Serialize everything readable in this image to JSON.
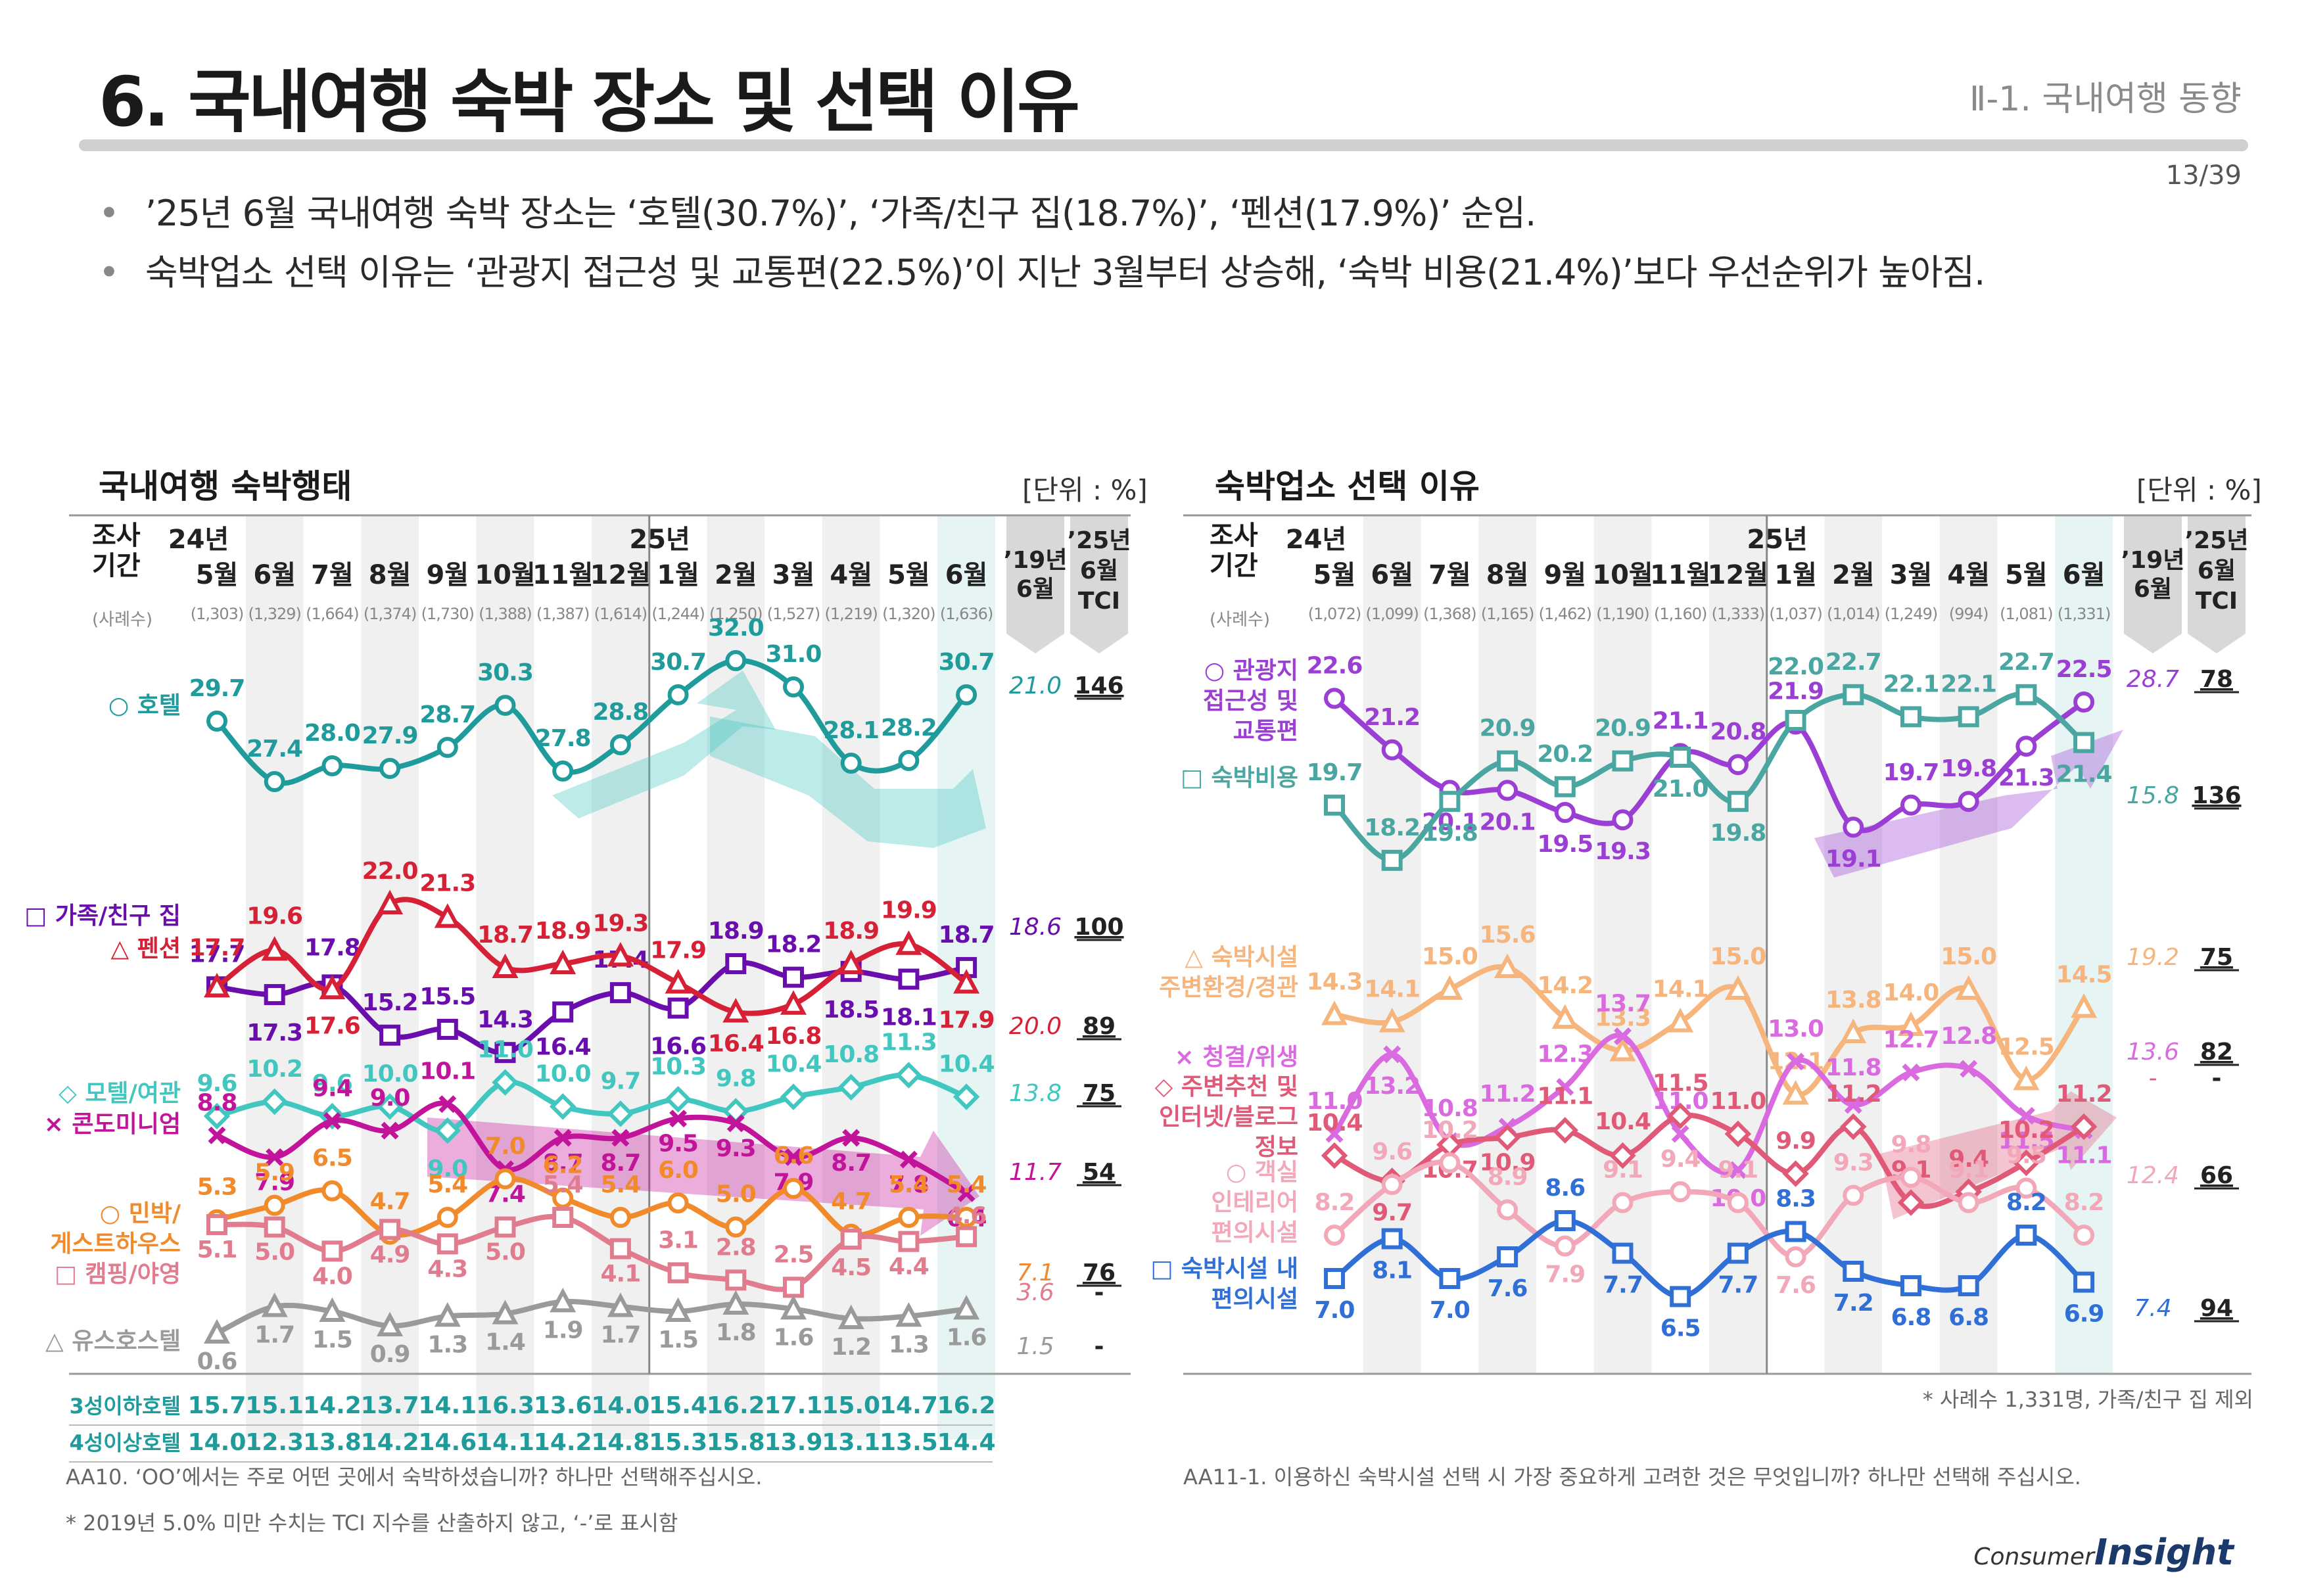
{
  "header": {
    "title": "6. 국내여행 숙박 장소 및 선택 이유",
    "section": "Ⅱ-1. 국내여행 동향",
    "page": "13/39"
  },
  "bullets": [
    "’25년 6월 국내여행 숙박 장소는 ‘호텔(30.7%)’, ‘가족/친구 집(18.7%)’, ‘펜션(17.9%)’ 순임.",
    "숙박업소 선택 이유는 ‘관광지 접근성 및 교통편(22.5%)’이 지난 3월부터 상승해, ‘숙박 비용(21.4%)’보다 우선순위가 높아짐."
  ],
  "colors": {
    "teal": "#1f9b9b",
    "purple": "#6a0dad",
    "red": "#d62035",
    "cyan": "#41c7c0",
    "magenta": "#c2149a",
    "orange": "#f08a2b",
    "pink": "#e07c8e",
    "gray": "#9a9a9a",
    "violet": "#9b3fd4",
    "peach": "#f5b57c",
    "orchid": "#d96ae0",
    "rose": "#e05a78",
    "lightpink": "#f2a8b8",
    "blue": "#2f6fd6"
  },
  "left_panel": {
    "title": "국내여행 숙박행태",
    "unit": "[단위 : %]",
    "period_label": [
      "조사",
      "기간"
    ],
    "sample_label": "(사례수)",
    "year_marks": [
      "24년",
      "25년"
    ],
    "tci_headers": [
      "’19년 6월",
      "’25년 6월 TCI"
    ],
    "row_labels": [
      "3성이하호텔",
      "4성이상호텔"
    ],
    "footnote1": "AA10. ‘OO’에서는 주로 어떤 곳에서 숙박하셨습니까? 하나만 선택해주십시오.",
    "footnote2": "* 2019년 5.0% 미만 수치는 TCI 지수를 산출하지 않고, ‘-’로 표시함"
  },
  "right_panel": {
    "title": "숙박업소 선택 이유",
    "unit": "[단위 : %]",
    "period_label": [
      "조사",
      "기간"
    ],
    "sample_label": "(사례수)",
    "year_marks": [
      "24년",
      "25년"
    ],
    "tci_headers": [
      "’19년 6월",
      "’25년 6월 TCI"
    ],
    "note": "* 사례수 1,331명, 가족/친구 집 제외",
    "footnote": "AA11-1. 이용하신 숙박시설 선택 시 가장 중요하게 고려한 것은 무엇입니까? 하나만 선택해 주십시오."
  },
  "chart_data": [
    {
      "type": "line",
      "title": "국내여행 숙박행태",
      "categories": [
        "5월",
        "6월",
        "7월",
        "8월",
        "9월",
        "10월",
        "11월",
        "12월",
        "1월",
        "2월",
        "3월",
        "4월",
        "5월",
        "6월"
      ],
      "samples": [
        "(1,303)",
        "(1,329)",
        "(1,664)",
        "(1,374)",
        "(1,730)",
        "(1,388)",
        "(1,387)",
        "(1,614)",
        "(1,244)",
        "(1,250)",
        "(1,527)",
        "(1,219)",
        "(1,320)",
        "(1,636)"
      ],
      "series": [
        {
          "name": "호텔",
          "label": "○ 호텔",
          "color": "#1f9b9b",
          "marker": "circle",
          "values": [
            29.7,
            27.4,
            28.0,
            27.9,
            28.7,
            30.3,
            27.8,
            28.8,
            30.7,
            32.0,
            31.0,
            28.1,
            28.2,
            30.7
          ],
          "y2019": "21.0",
          "tci": "146"
        },
        {
          "name": "가족/친구 집",
          "label": "□ 가족/친구 집",
          "color": "#6a0dad",
          "marker": "square",
          "values": [
            17.7,
            17.3,
            17.8,
            15.2,
            15.5,
            14.3,
            16.4,
            17.4,
            16.6,
            18.9,
            18.2,
            18.5,
            18.1,
            18.7
          ],
          "y2019": "18.6",
          "tci": "100"
        },
        {
          "name": "펜션",
          "label": "△ 펜션",
          "color": "#d62035",
          "marker": "triangle",
          "values": [
            17.7,
            19.6,
            17.6,
            22.0,
            21.3,
            18.7,
            18.9,
            19.3,
            17.9,
            16.4,
            16.8,
            18.9,
            19.9,
            17.9
          ],
          "y2019": "20.0",
          "tci": "89"
        },
        {
          "name": "모텔/여관",
          "label": "◇ 모텔/여관",
          "color": "#41c7c0",
          "marker": "diamond",
          "values": [
            9.6,
            10.2,
            9.6,
            10.0,
            9.0,
            11.0,
            10.0,
            9.7,
            10.3,
            9.8,
            10.4,
            10.8,
            11.3,
            10.4
          ],
          "y2019": "13.8",
          "tci": "75"
        },
        {
          "name": "콘도미니엄",
          "label": "× 콘도미니엄",
          "color": "#c2149a",
          "marker": "cross",
          "values": [
            8.8,
            7.9,
            9.4,
            9.0,
            10.1,
            7.4,
            8.7,
            8.7,
            9.5,
            9.3,
            7.9,
            8.7,
            7.8,
            6.4
          ],
          "y2019": "11.7",
          "tci": "54"
        },
        {
          "name": "민박/게스트하우스",
          "label": "○ 민박/ 게스트하우스",
          "color": "#f08a2b",
          "marker": "circle",
          "values": [
            5.3,
            5.9,
            6.5,
            4.7,
            5.4,
            7.0,
            6.2,
            5.4,
            6.0,
            5.0,
            6.6,
            4.7,
            5.4,
            5.4
          ],
          "y2019": "7.1",
          "tci": "76"
        },
        {
          "name": "캠핑/야영",
          "label": "□ 캠핑/야영",
          "color": "#e07c8e",
          "marker": "square",
          "values": [
            5.1,
            5.0,
            4.0,
            4.9,
            4.3,
            5.0,
            5.4,
            4.1,
            3.1,
            2.8,
            2.5,
            4.5,
            4.4,
            4.6
          ],
          "y2019": "3.6",
          "tci": "-"
        },
        {
          "name": "유스호스텔",
          "label": "△ 유스호스텔",
          "color": "#9a9a9a",
          "marker": "triangle",
          "values": [
            0.6,
            1.7,
            1.5,
            0.9,
            1.3,
            1.4,
            1.9,
            1.7,
            1.5,
            1.8,
            1.6,
            1.2,
            1.3,
            1.6
          ],
          "y2019": "1.5",
          "tci": "-"
        }
      ],
      "extra_rows": [
        {
          "name": "3성이하호텔",
          "values": [
            15.7,
            15.1,
            14.2,
            13.7,
            14.1,
            16.3,
            13.6,
            14.0,
            15.4,
            16.2,
            17.1,
            15.0,
            14.7,
            16.2
          ]
        },
        {
          "name": "4성이상호텔",
          "values": [
            14.0,
            12.3,
            13.8,
            14.2,
            14.6,
            14.1,
            14.2,
            14.8,
            15.3,
            15.8,
            13.9,
            13.1,
            13.5,
            14.4
          ]
        }
      ]
    },
    {
      "type": "line",
      "title": "숙박업소 선택 이유",
      "categories": [
        "5월",
        "6월",
        "7월",
        "8월",
        "9월",
        "10월",
        "11월",
        "12월",
        "1월",
        "2월",
        "3월",
        "4월",
        "5월",
        "6월"
      ],
      "samples": [
        "(1,072)",
        "(1,099)",
        "(1,368)",
        "(1,165)",
        "(1,462)",
        "(1,190)",
        "(1,160)",
        "(1,333)",
        "(1,037)",
        "(1,014)",
        "(1,249)",
        "(994)",
        "(1,081)",
        "(1,331)"
      ],
      "series": [
        {
          "name": "관광지 접근성 및 교통편",
          "label": "○ 관광지 접근성 및 교통편",
          "color": "#9b3fd4",
          "marker": "circle",
          "values": [
            22.6,
            21.2,
            20.1,
            20.1,
            19.5,
            19.3,
            21.1,
            20.8,
            21.9,
            19.1,
            19.7,
            19.8,
            21.3,
            22.5
          ],
          "y2019": "28.7",
          "tci": "78"
        },
        {
          "name": "숙박비용",
          "label": "□ 숙박비용",
          "color": "#4aa6a0",
          "marker": "square",
          "values": [
            19.7,
            18.2,
            19.8,
            20.9,
            20.2,
            20.9,
            21.0,
            19.8,
            22.0,
            22.7,
            22.1,
            22.1,
            22.7,
            21.4
          ],
          "y2019": "15.8",
          "tci": "136"
        },
        {
          "name": "숙박시설 주변환경/경관",
          "label": "△ 숙박시설 주변환경/경관",
          "color": "#f5b57c",
          "marker": "triangle",
          "values": [
            14.3,
            14.1,
            15.0,
            15.6,
            14.2,
            13.3,
            14.1,
            15.0,
            12.1,
            13.8,
            14.0,
            15.0,
            12.5,
            14.5
          ],
          "y2019": "19.2",
          "tci": "75"
        },
        {
          "name": "청결/위생",
          "label": "× 청결/위생",
          "color": "#d96ae0",
          "marker": "cross",
          "values": [
            11.0,
            13.2,
            10.8,
            11.2,
            12.3,
            13.7,
            11.0,
            10.0,
            13.0,
            11.8,
            12.7,
            12.8,
            11.5,
            11.1
          ],
          "y2019": "13.6",
          "tci": "82"
        },
        {
          "name": "주변추천 및 인터넷/블로그 정보",
          "label": "◇ 주변추천 및 인터넷/블로그 정보",
          "color": "#e05a78",
          "marker": "diamond",
          "values": [
            10.4,
            9.7,
            10.7,
            10.9,
            11.1,
            10.4,
            11.5,
            11.0,
            9.9,
            11.2,
            9.1,
            9.4,
            10.2,
            11.2
          ],
          "y2019": "-",
          "tci": "-"
        },
        {
          "name": "객실 인테리어 편의시설",
          "label": "○ 객실 인테리어 편의시설",
          "color": "#f2a8b8",
          "marker": "circle",
          "values": [
            8.2,
            9.6,
            10.2,
            8.9,
            7.9,
            9.1,
            9.4,
            9.1,
            7.6,
            9.3,
            9.8,
            9.1,
            9.5,
            8.2
          ],
          "y2019": "12.4",
          "tci": "66"
        },
        {
          "name": "숙박시설 내 편의시설",
          "label": "□ 숙박시설 내 편의시설",
          "color": "#2f6fd6",
          "marker": "square",
          "values": [
            7.0,
            8.1,
            7.0,
            7.6,
            8.6,
            7.7,
            6.5,
            7.7,
            8.3,
            7.2,
            6.8,
            6.8,
            8.2,
            6.9
          ],
          "y2019": "7.4",
          "tci": "94"
        }
      ]
    }
  ],
  "logo": {
    "small": "Consumer",
    "big": "Insight"
  }
}
